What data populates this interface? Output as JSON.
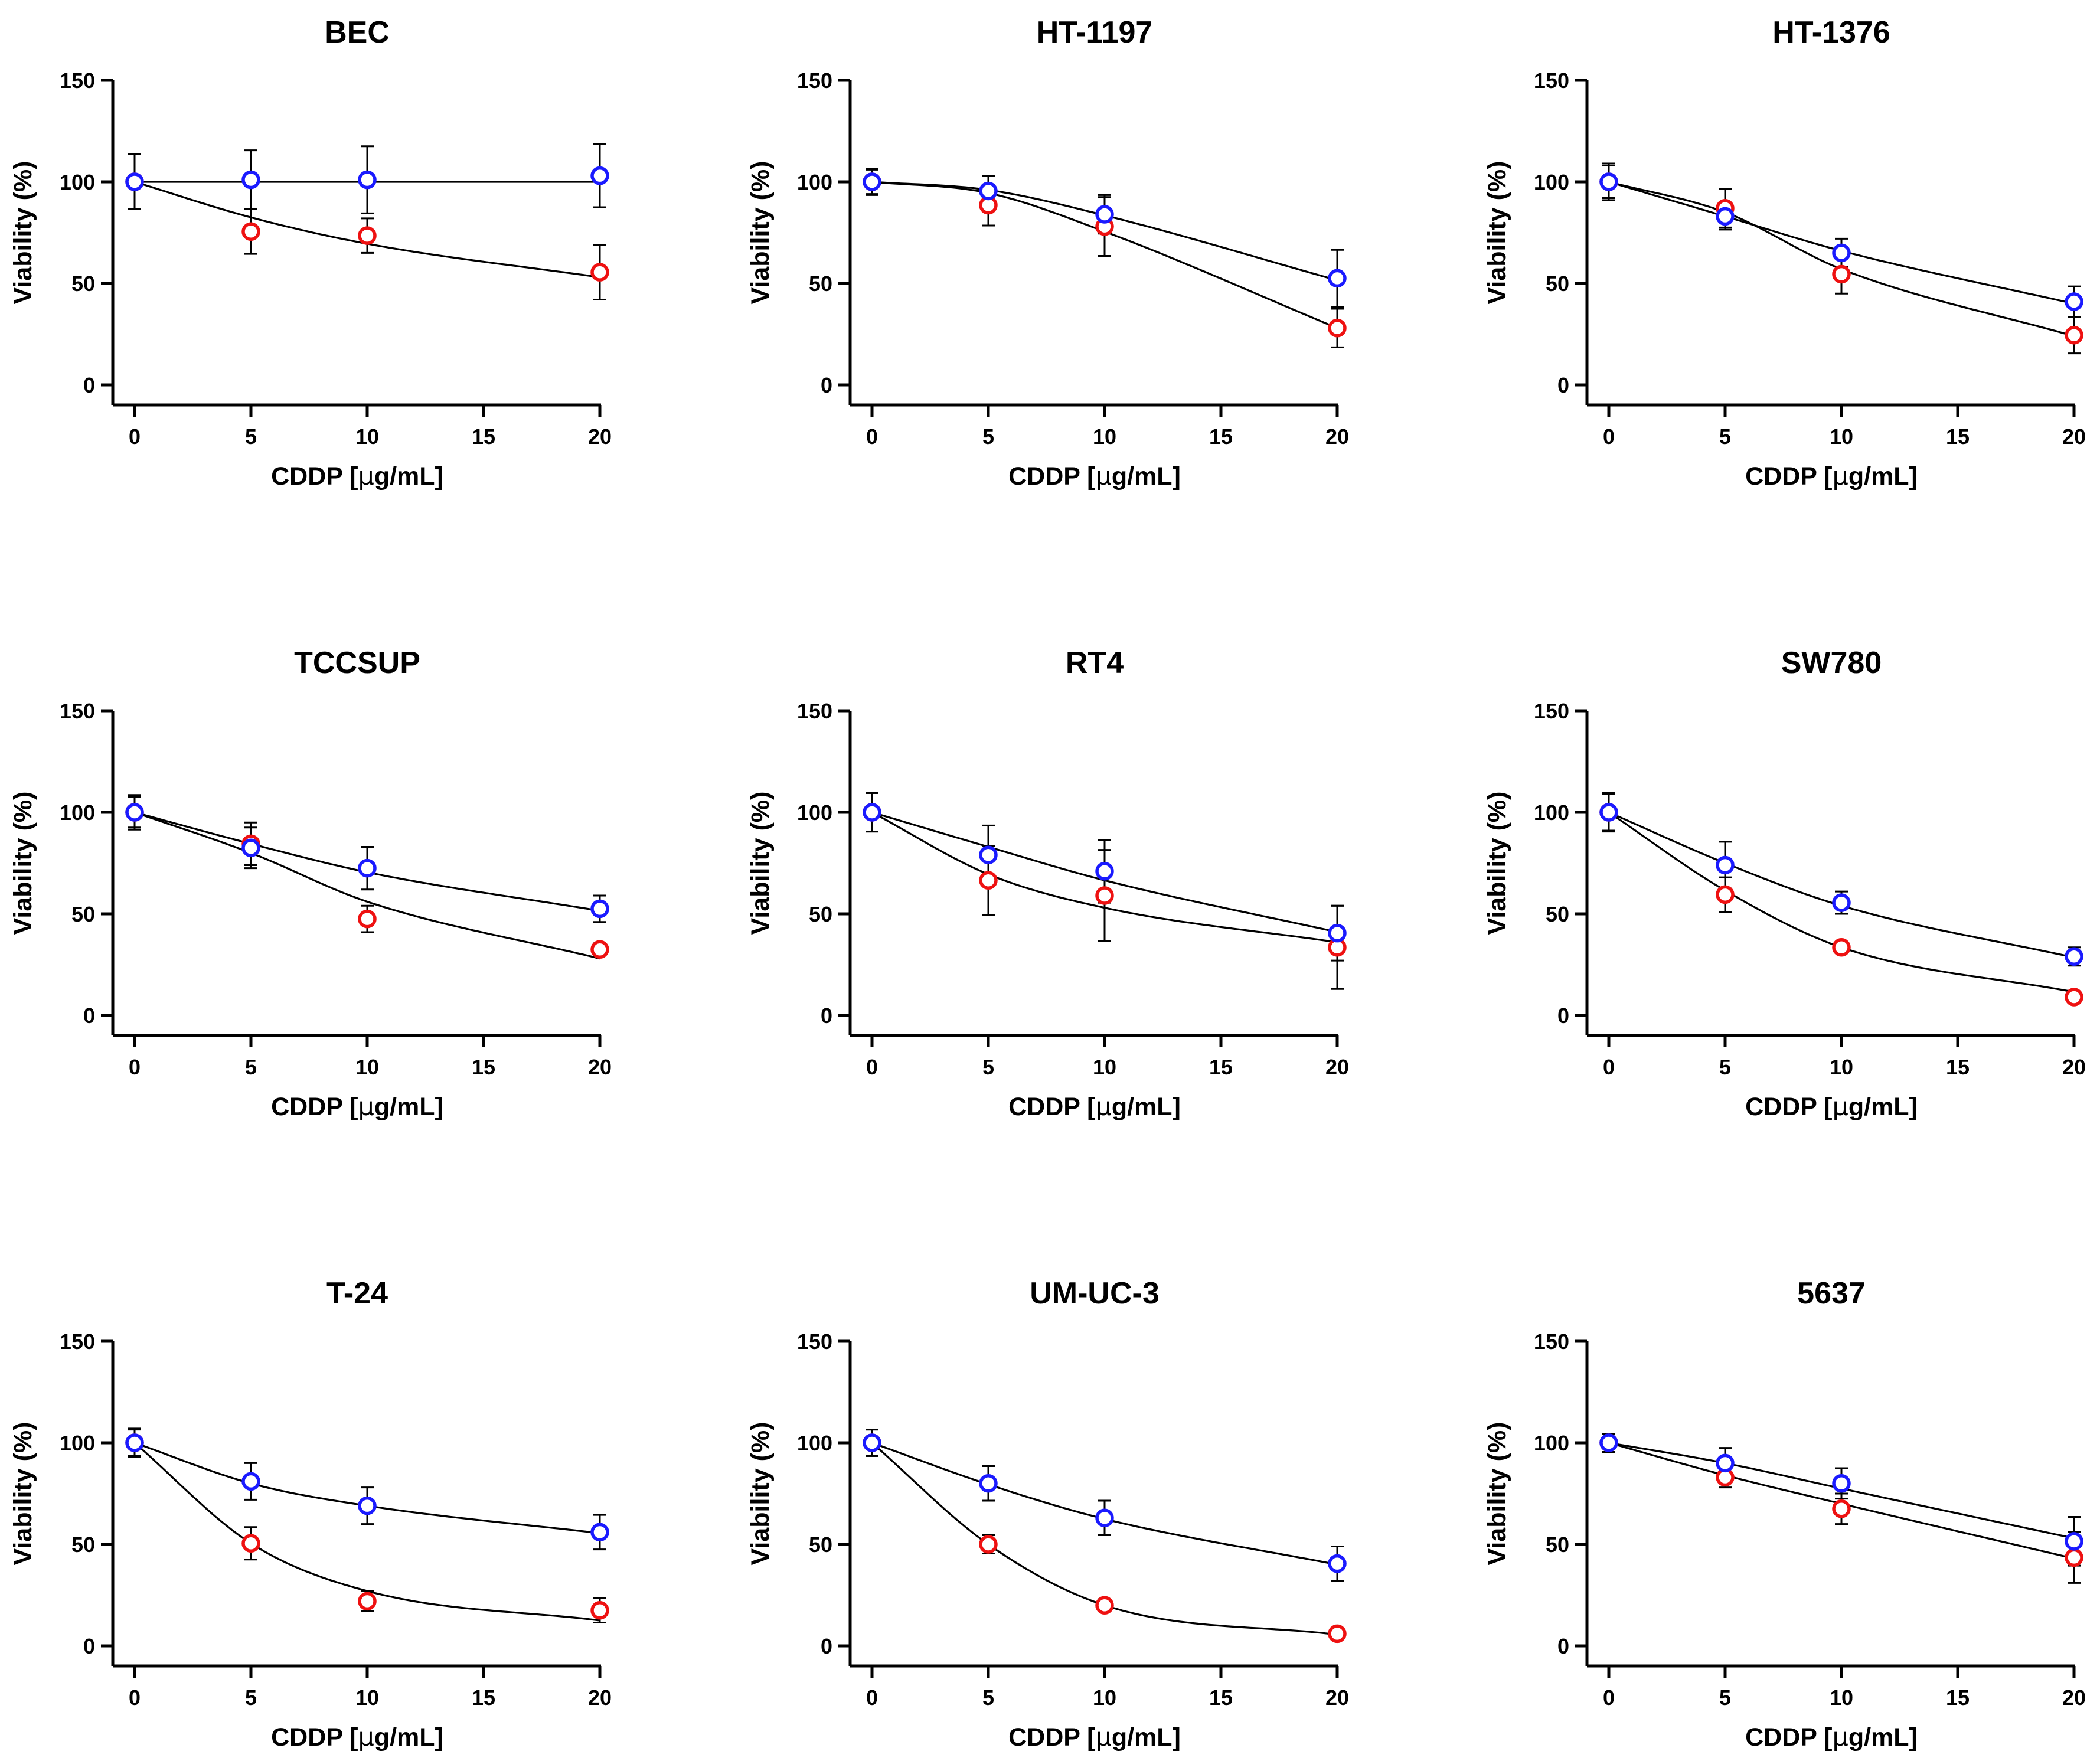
{
  "figure": {
    "xlabel_prefix": "CDDP [",
    "xlabel_mu": "μ",
    "xlabel_suffix": "g/mL]",
    "ylabel": "Viability  (%)"
  },
  "series_colors": {
    "blue": "#1a1aff",
    "red": "#ee1111"
  },
  "chart_data": [
    {
      "type": "scatter",
      "title": "BEC",
      "xlabel": "CDDP [μg/mL]",
      "ylabel": "Viability  (%)",
      "x": [
        0,
        5,
        10,
        20
      ],
      "xlim": [
        0,
        20
      ],
      "ylim": [
        0,
        150
      ],
      "xticks": [
        0,
        5,
        10,
        15,
        20
      ],
      "yticks": [
        0,
        50,
        100,
        150
      ],
      "series": [
        {
          "name": "blue",
          "color": "#1a1aff",
          "values": [
            100,
            101,
            101,
            103
          ],
          "errors": [
            13.5,
            14.5,
            16.5,
            15.5
          ],
          "fit": [
            100,
            100,
            100,
            100
          ]
        },
        {
          "name": "red",
          "color": "#ee1111",
          "values": [
            100,
            75.5,
            73.5,
            55.5
          ],
          "errors": [
            13.5,
            11,
            8.5,
            13.5
          ],
          "fit": [
            100,
            82.5,
            69.5,
            53
          ]
        }
      ]
    },
    {
      "type": "scatter",
      "title": "HT-1197",
      "xlabel": "CDDP [μg/mL]",
      "ylabel": "Viability  (%)",
      "x": [
        0,
        5,
        10,
        20
      ],
      "xlim": [
        0,
        20
      ],
      "ylim": [
        0,
        150
      ],
      "xticks": [
        0,
        5,
        10,
        15,
        20
      ],
      "yticks": [
        0,
        50,
        100,
        150
      ],
      "series": [
        {
          "name": "blue",
          "color": "#1a1aff",
          "values": [
            100,
            95.5,
            84,
            52.5
          ],
          "errors": [
            6.5,
            7.5,
            9.5,
            14
          ],
          "fit": [
            100,
            96,
            83.5,
            51.5
          ]
        },
        {
          "name": "red",
          "color": "#ee1111",
          "values": [
            100,
            88.5,
            78,
            28
          ],
          "errors": [
            6,
            10,
            14.5,
            9.5
          ],
          "fit": [
            100,
            94.5,
            75.5,
            28
          ]
        }
      ]
    },
    {
      "type": "scatter",
      "title": "HT-1376",
      "xlabel": "CDDP [μg/mL]",
      "ylabel": "Viability  (%)",
      "x": [
        0,
        5,
        10,
        20
      ],
      "xlim": [
        0,
        20
      ],
      "ylim": [
        0,
        150
      ],
      "xticks": [
        0,
        5,
        10,
        15,
        20
      ],
      "yticks": [
        0,
        50,
        100,
        150
      ],
      "series": [
        {
          "name": "blue",
          "color": "#1a1aff",
          "values": [
            100,
            83,
            65,
            41
          ],
          "errors": [
            8,
            6.5,
            7,
            7.5
          ],
          "fit": [
            100,
            83,
            66,
            40
          ]
        },
        {
          "name": "red",
          "color": "#ee1111",
          "values": [
            100,
            87,
            54.5,
            24.5
          ],
          "errors": [
            9,
            9.5,
            9.5,
            9
          ],
          "fit": [
            100,
            85,
            57,
            24
          ]
        }
      ]
    },
    {
      "type": "scatter",
      "title": "TCCSUP",
      "xlabel": "CDDP [μg/mL]",
      "ylabel": "Viability  (%)",
      "x": [
        0,
        5,
        10,
        20
      ],
      "xlim": [
        0,
        20
      ],
      "ylim": [
        0,
        150
      ],
      "xticks": [
        0,
        5,
        10,
        15,
        20
      ],
      "yticks": [
        0,
        50,
        100,
        150
      ],
      "series": [
        {
          "name": "blue",
          "color": "#1a1aff",
          "values": [
            100,
            82.5,
            72.5,
            52.5
          ],
          "errors": [
            8.5,
            10,
            10.5,
            6.5
          ],
          "fit": [
            100,
            84.5,
            70.5,
            51.5
          ]
        },
        {
          "name": "red",
          "color": "#ee1111",
          "values": [
            100,
            84.5,
            47.5,
            32.5
          ],
          "errors": [
            7.5,
            10.5,
            6.5,
            3
          ],
          "fit": [
            100,
            80,
            56,
            28
          ]
        }
      ]
    },
    {
      "type": "scatter",
      "title": "RT4",
      "xlabel": "CDDP [μg/mL]",
      "ylabel": "Viability  (%)",
      "x": [
        0,
        5,
        10,
        20
      ],
      "xlim": [
        0,
        20
      ],
      "ylim": [
        0,
        150
      ],
      "xticks": [
        0,
        5,
        10,
        15,
        20
      ],
      "yticks": [
        0,
        50,
        100,
        150
      ],
      "series": [
        {
          "name": "blue",
          "color": "#1a1aff",
          "values": [
            100,
            79,
            71,
            40.5
          ],
          "errors": [
            9.5,
            14.5,
            15.5,
            13.5
          ],
          "fit": [
            100,
            83,
            66.5,
            41
          ]
        },
        {
          "name": "red",
          "color": "#ee1111",
          "values": [
            100,
            66.5,
            59,
            33.5
          ],
          "errors": [
            9.5,
            17,
            22.5,
            20.5
          ],
          "fit": [
            100,
            69.5,
            53,
            36
          ]
        }
      ]
    },
    {
      "type": "scatter",
      "title": "SW780",
      "xlabel": "CDDP [μg/mL]",
      "ylabel": "Viability  (%)",
      "x": [
        0,
        5,
        10,
        20
      ],
      "xlim": [
        0,
        20
      ],
      "ylim": [
        0,
        150
      ],
      "xticks": [
        0,
        5,
        10,
        15,
        20
      ],
      "yticks": [
        0,
        50,
        100,
        150
      ],
      "series": [
        {
          "name": "blue",
          "color": "#1a1aff",
          "values": [
            100,
            74,
            55.5,
            29
          ],
          "errors": [
            9.5,
            11.5,
            5.5,
            4.5
          ],
          "fit": [
            100,
            75,
            54,
            28.5
          ]
        },
        {
          "name": "red",
          "color": "#ee1111",
          "values": [
            100,
            59.5,
            33.5,
            9
          ],
          "errors": [
            9,
            8.5,
            2,
            1.5
          ],
          "fit": [
            100,
            61.5,
            33.5,
            11.5
          ]
        }
      ]
    },
    {
      "type": "scatter",
      "title": "T-24",
      "xlabel": "CDDP [μg/mL]",
      "ylabel": "Viability  (%)",
      "x": [
        0,
        5,
        10,
        20
      ],
      "xlim": [
        0,
        20
      ],
      "ylim": [
        0,
        150
      ],
      "xticks": [
        0,
        5,
        10,
        15,
        20
      ],
      "yticks": [
        0,
        50,
        100,
        150
      ],
      "series": [
        {
          "name": "blue",
          "color": "#1a1aff",
          "values": [
            100,
            81,
            69,
            56
          ],
          "errors": [
            7,
            9,
            9,
            8.5
          ],
          "fit": [
            100,
            80,
            69,
            55.5
          ]
        },
        {
          "name": "red",
          "color": "#ee1111",
          "values": [
            100,
            50.5,
            22,
            17.5
          ],
          "errors": [
            6.5,
            8,
            5,
            6
          ],
          "fit": [
            100,
            50.5,
            27,
            12.5
          ]
        }
      ]
    },
    {
      "type": "scatter",
      "title": "UM-UC-3",
      "xlabel": "CDDP [μg/mL]",
      "ylabel": "Viability  (%)",
      "x": [
        0,
        5,
        10,
        20
      ],
      "xlim": [
        0,
        20
      ],
      "ylim": [
        0,
        150
      ],
      "xticks": [
        0,
        5,
        10,
        15,
        20
      ],
      "yticks": [
        0,
        50,
        100,
        150
      ],
      "series": [
        {
          "name": "blue",
          "color": "#1a1aff",
          "values": [
            100,
            80,
            63,
            40.5
          ],
          "errors": [
            6.5,
            8.5,
            8.5,
            8.5
          ],
          "fit": [
            100,
            79.5,
            62.5,
            40
          ]
        },
        {
          "name": "red",
          "color": "#ee1111",
          "values": [
            100,
            50,
            20,
            6
          ],
          "errors": [
            6.5,
            4.5,
            3,
            1
          ],
          "fit": [
            100,
            50,
            20,
            5.5
          ]
        }
      ]
    },
    {
      "type": "scatter",
      "title": "5637",
      "xlabel": "CDDP [μg/mL]",
      "ylabel": "Viability  (%)",
      "x": [
        0,
        5,
        10,
        20
      ],
      "xlim": [
        0,
        20
      ],
      "ylim": [
        0,
        150
      ],
      "xticks": [
        0,
        5,
        10,
        15,
        20
      ],
      "yticks": [
        0,
        50,
        100,
        150
      ],
      "series": [
        {
          "name": "blue",
          "color": "#1a1aff",
          "values": [
            100,
            90,
            80,
            51.5
          ],
          "errors": [
            4.5,
            7.5,
            7.5,
            12
          ],
          "fit": [
            100,
            90,
            77.5,
            53
          ]
        },
        {
          "name": "red",
          "color": "#ee1111",
          "values": [
            100,
            83,
            67.5,
            43.5
          ],
          "errors": [
            4.5,
            5,
            7.5,
            12.5
          ],
          "fit": [
            100,
            84,
            70,
            43
          ]
        }
      ]
    }
  ]
}
